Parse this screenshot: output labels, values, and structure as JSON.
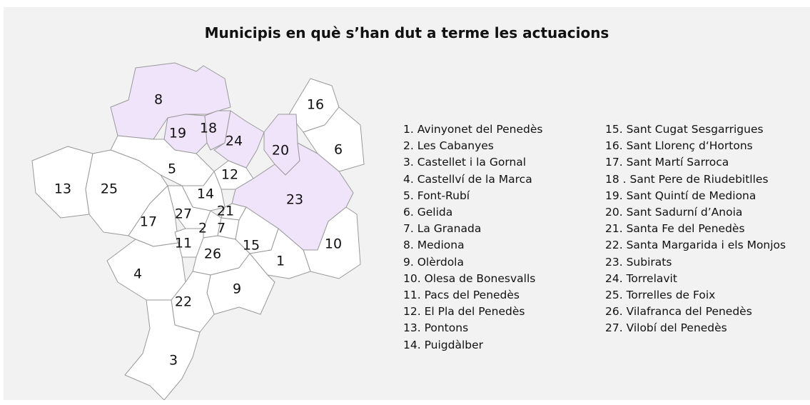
{
  "title": "Municipis en què s’han dut a terme les actuacions",
  "regions": [
    {
      "label": "8",
      "highlighted": true
    },
    {
      "label": "16",
      "highlighted": false
    },
    {
      "label": "19",
      "highlighted": true
    },
    {
      "label": "18",
      "highlighted": true
    },
    {
      "label": "24",
      "highlighted": true
    },
    {
      "label": "20",
      "highlighted": true
    },
    {
      "label": "6",
      "highlighted": false
    },
    {
      "label": "5",
      "highlighted": false
    },
    {
      "label": "12",
      "highlighted": false
    },
    {
      "label": "13",
      "highlighted": false
    },
    {
      "label": "25",
      "highlighted": false
    },
    {
      "label": "14",
      "highlighted": false
    },
    {
      "label": "23",
      "highlighted": true
    },
    {
      "label": "21",
      "highlighted": false
    },
    {
      "label": "27",
      "highlighted": false
    },
    {
      "label": "17",
      "highlighted": false
    },
    {
      "label": "2",
      "highlighted": false
    },
    {
      "label": "7",
      "highlighted": false
    },
    {
      "label": "11",
      "highlighted": false
    },
    {
      "label": "15",
      "highlighted": false
    },
    {
      "label": "10",
      "highlighted": false
    },
    {
      "label": "26",
      "highlighted": false
    },
    {
      "label": "1",
      "highlighted": false
    },
    {
      "label": "4",
      "highlighted": false
    },
    {
      "label": "9",
      "highlighted": false
    },
    {
      "label": "22",
      "highlighted": false
    },
    {
      "label": "3",
      "highlighted": false
    }
  ],
  "highlight_color": "#f0e4fb",
  "base_color": "#ffffff",
  "legend": [
    [
      "1. Avinyonet del Penedès",
      "2. Les Cabanyes",
      "3. Castellet i la Gornal",
      "4. Castellví de la Marca",
      "5. Font-Rubí",
      "6. Gelida",
      "7. La Granada",
      "8. Mediona",
      "9. Olèrdola",
      "10. Olesa de Bonesvalls",
      "11. Pacs del Penedès",
      "12. El Pla del Penedès",
      "13. Pontons",
      "14. Puigdàlber"
    ],
    [
      "15. Sant Cugat Sesgarrigues",
      "16. Sant Llorenç d‘Hortons",
      "17. Sant Martí Sarroca",
      "18 . Sant Pere de Riudebitlles",
      "19. Sant Quintí de Mediona",
      "20. Sant Sadurní d’Anoia",
      "21. Santa Fe del Penedès",
      "22. Santa Margarida i els Monjos",
      "23. Subirats",
      "24. Torrelavit",
      "25. Torrelles de Foix",
      "26. Vilafranca del Penedès",
      "27. Vilobí del Penedès"
    ]
  ]
}
